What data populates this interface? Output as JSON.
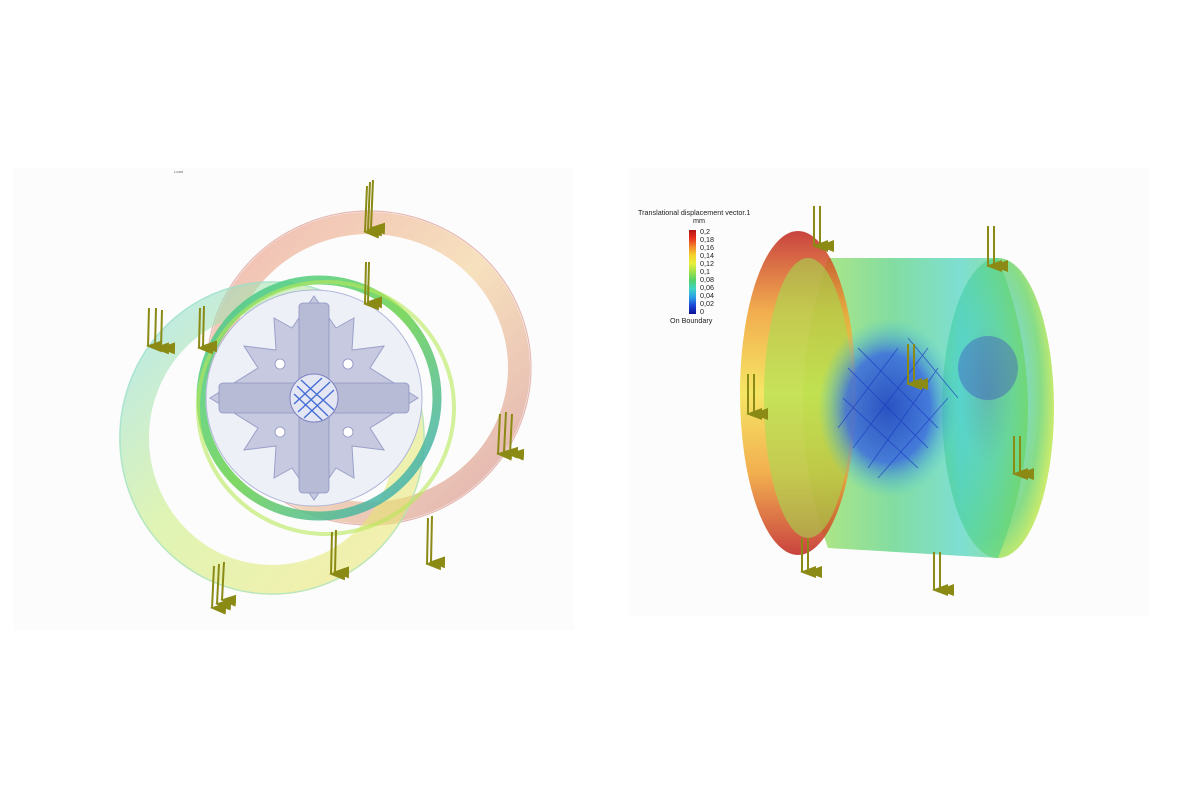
{
  "legend": {
    "title": "Translational displacement vector.1",
    "unit": "mm",
    "ticks": [
      "0,2",
      "0,18",
      "0,16",
      "0,14",
      "0,12",
      "0,1",
      "0,08",
      "0,06",
      "0,04",
      "0,02",
      "0"
    ],
    "boundary_label": "On Boundary"
  },
  "left_view": {
    "tiny_label": "Load"
  },
  "colors": {
    "max": "#b41316",
    "high": "#e8301d",
    "mid_high": "#f28a2a",
    "yellow": "#f5d22c",
    "mid": "#9fe04a",
    "green": "#52d06a",
    "cyan": "#3fd3c6",
    "light_blue": "#2aa0e6",
    "blue": "#1c46d6",
    "min": "#0b0f96",
    "arrow": "#8a8a14",
    "hub": "#9aa0c8"
  }
}
